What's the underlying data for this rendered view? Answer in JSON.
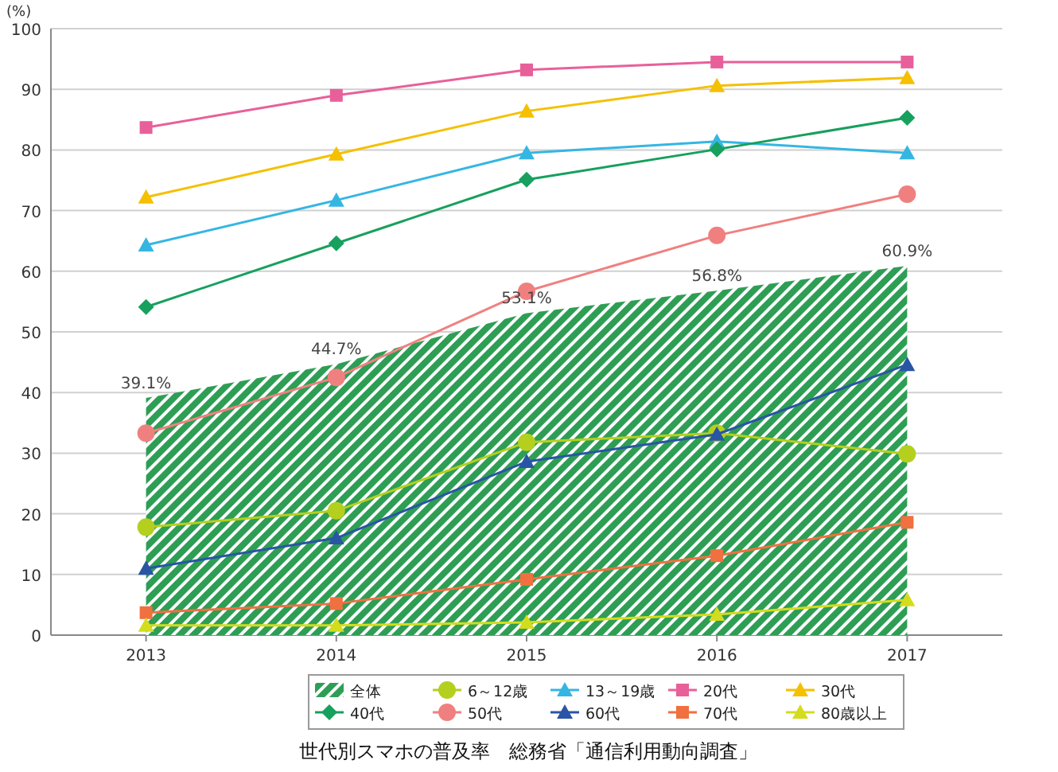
{
  "chart_data": {
    "type": "line",
    "title": "世代別スマホの普及率　総務省「通信利用動向調査」",
    "ylabel": "(%)",
    "categories": [
      "2013",
      "2014",
      "2015",
      "2016",
      "2017"
    ],
    "ylim": [
      0,
      100
    ],
    "yticks": [
      0,
      10,
      20,
      30,
      40,
      50,
      60,
      70,
      80,
      90,
      100
    ],
    "grid": "y",
    "legend": "bottom",
    "series": [
      {
        "name": "全体",
        "type": "area",
        "color": "#2e9e55",
        "values": [
          39.1,
          44.7,
          53.1,
          56.8,
          60.9
        ],
        "value_labels": [
          "39.1%",
          "44.7%",
          "53.1%",
          "56.8%",
          "60.9%"
        ]
      },
      {
        "name": "6～12歳",
        "color": "#b5cf1f",
        "marker": "circle",
        "values": [
          17.8,
          20.5,
          31.8,
          33.3,
          29.9
        ]
      },
      {
        "name": "13～19歳",
        "color": "#35b6e2",
        "marker": "triangle",
        "values": [
          64.3,
          71.7,
          79.5,
          81.4,
          79.5
        ]
      },
      {
        "name": "20代",
        "color": "#e8609a",
        "marker": "square",
        "values": [
          83.7,
          89.0,
          93.2,
          94.5,
          94.5
        ]
      },
      {
        "name": "30代",
        "color": "#f5c000",
        "marker": "triangle",
        "values": [
          72.2,
          79.3,
          86.4,
          90.6,
          91.9
        ]
      },
      {
        "name": "40代",
        "color": "#17a05e",
        "marker": "diamond",
        "values": [
          54.1,
          64.6,
          75.1,
          80.1,
          85.3
        ]
      },
      {
        "name": "50代",
        "color": "#f08080",
        "marker": "circle",
        "values": [
          33.3,
          42.5,
          56.7,
          65.9,
          72.7
        ]
      },
      {
        "name": "60代",
        "color": "#2a55a5",
        "marker": "triangle",
        "values": [
          11.0,
          16.0,
          28.6,
          33.1,
          44.6
        ]
      },
      {
        "name": "70代",
        "color": "#f07040",
        "marker": "square",
        "values": [
          3.7,
          5.2,
          9.2,
          13.1,
          18.6
        ]
      },
      {
        "name": "80歳以上",
        "color": "#d4dc1e",
        "marker": "triangle",
        "values": [
          1.6,
          1.6,
          2.1,
          3.4,
          5.8
        ]
      }
    ]
  }
}
